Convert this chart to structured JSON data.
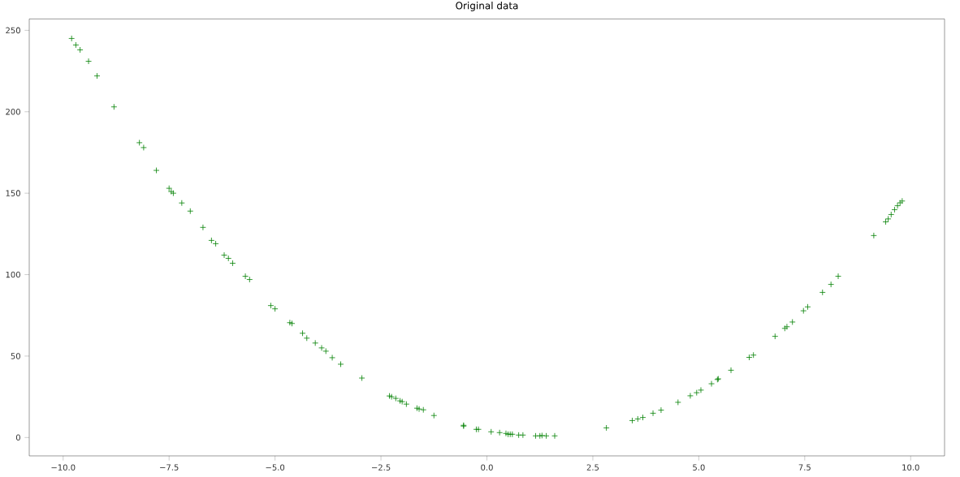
{
  "chart_data": {
    "type": "scatter",
    "title": "Original data",
    "x": [
      -9.8,
      -9.7,
      -9.6,
      -9.4,
      -9.2,
      -8.8,
      -8.2,
      -8.1,
      -7.8,
      -7.5,
      -7.45,
      -7.4,
      -7.2,
      -7.0,
      -6.7,
      -6.5,
      -6.4,
      -6.2,
      -6.1,
      -6.0,
      -5.7,
      -5.6,
      -5.1,
      -5.0,
      -4.65,
      -4.6,
      -4.35,
      -4.25,
      -4.05,
      -3.9,
      -3.8,
      -3.65,
      -3.45,
      -2.95,
      -2.3,
      -2.25,
      -2.15,
      -2.05,
      -2.0,
      -1.9,
      -1.65,
      -1.6,
      -1.5,
      -1.25,
      -0.55,
      -0.55,
      -0.25,
      -0.2,
      0.1,
      0.3,
      0.45,
      0.5,
      0.55,
      0.6,
      0.75,
      0.85,
      1.15,
      1.25,
      1.3,
      1.4,
      1.6,
      2.82,
      3.43,
      3.56,
      3.68,
      3.92,
      4.11,
      4.51,
      4.8,
      4.95,
      5.05,
      5.3,
      5.44,
      5.46,
      5.76,
      6.19,
      6.29,
      6.8,
      7.03,
      7.08,
      7.21,
      7.47,
      7.57,
      7.92,
      8.12,
      8.29,
      9.13,
      9.41,
      9.47,
      9.54,
      9.62,
      9.69,
      9.75,
      9.8
    ],
    "series": [
      {
        "color": "#008000",
        "values": [
          245,
          241,
          238,
          231,
          222,
          203,
          181,
          178,
          164,
          153,
          151,
          150,
          144,
          139,
          129,
          121,
          119,
          112,
          110,
          107,
          99,
          97,
          81,
          79,
          70.5,
          70,
          64,
          61,
          58,
          55,
          53,
          49,
          45,
          36.5,
          25.5,
          25,
          24,
          22.5,
          22,
          20.5,
          18,
          17.5,
          17,
          13.5,
          7.5,
          7,
          5,
          5,
          3.5,
          3,
          2.5,
          2,
          2,
          2,
          1.5,
          1.5,
          1,
          1,
          1.2,
          1,
          1,
          5.9,
          10.4,
          11.4,
          12.3,
          14.9,
          16.8,
          21.6,
          25.6,
          27.5,
          29.1,
          33,
          35.6,
          36,
          41.3,
          49.2,
          50.6,
          62.1,
          67,
          68,
          70.9,
          77.8,
          80.2,
          89.1,
          94,
          99,
          124,
          132.4,
          134.2,
          136.9,
          139.9,
          142.3,
          144.1,
          145.2
        ]
      }
    ],
    "marker": "cross",
    "xlim": [
      -10.8,
      10.8
    ],
    "ylim": [
      -11.3,
      257
    ],
    "xticks": [
      {
        "value": -10,
        "label": "−10.0"
      },
      {
        "value": -7.5,
        "label": "−7.5"
      },
      {
        "value": -5,
        "label": "−5.0"
      },
      {
        "value": -2.5,
        "label": "−2.5"
      },
      {
        "value": 0,
        "label": "0.0"
      },
      {
        "value": 2.5,
        "label": "2.5"
      },
      {
        "value": 5,
        "label": "5.0"
      },
      {
        "value": 7.5,
        "label": "7.5"
      },
      {
        "value": 10,
        "label": "10.0"
      }
    ],
    "yticks": [
      0,
      50,
      100,
      150,
      200,
      250
    ]
  }
}
